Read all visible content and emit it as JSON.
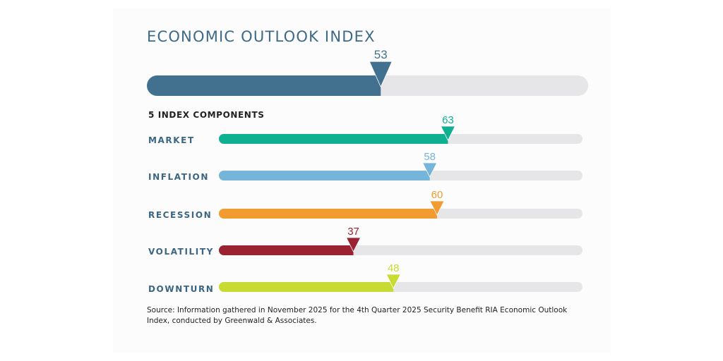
{
  "chart_data": {
    "type": "bar",
    "title": "ECONOMIC OUTLOOK INDEX",
    "overall": {
      "value": 53,
      "color": "#41718f"
    },
    "subtitle": "5 INDEX COMPONENTS",
    "xlim": [
      0,
      100
    ],
    "track_color": "#e6e6e8",
    "categories": [
      "MARKET",
      "INFLATION",
      "RECESSION",
      "VOLATILITY",
      "DOWNTURN"
    ],
    "values": [
      63,
      58,
      60,
      37,
      48
    ],
    "colors": [
      "#0fb092",
      "#74b5d9",
      "#f29b30",
      "#9b2232",
      "#c8db33"
    ],
    "source": "Source: Information gathered in November 2025 for the 4th Quarter 2025 Security Benefit RIA Economic Outlook Index, conducted by Greenwald & Associates."
  }
}
